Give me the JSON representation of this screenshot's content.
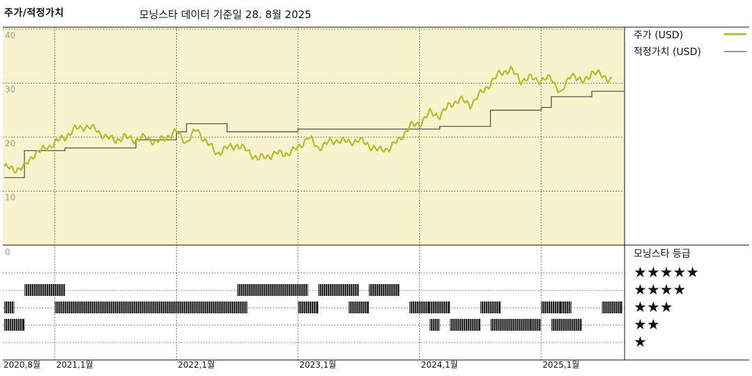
{
  "header": {
    "title": "주가/적정가치",
    "subtitle": "모닝스타 데이터 기준일 28. 8월 2025"
  },
  "legend": {
    "price_label": "주가 (USD)",
    "fair_value_label": "적정가치 (USD)",
    "rating_title": "모닝스타 등급",
    "stars": [
      "★★★★★",
      "★★★★",
      "★★★",
      "★★",
      "★"
    ]
  },
  "colors": {
    "price": "#b5bb2c",
    "fair_value": "#555555",
    "plot_bg": "#f8f3cc",
    "rating_bar": "#222222"
  },
  "chart_data": [
    {
      "type": "line",
      "title": "주가/적정가치",
      "ylim": [
        0,
        40
      ],
      "yticks": [
        "40",
        "30",
        "20",
        "10"
      ],
      "xticks": [
        "2020,8월",
        "2021,1월",
        "2022,1월",
        "2023,1월",
        "2024,1월",
        "2025,1월"
      ],
      "grid": true,
      "legend_position": "right",
      "series": [
        {
          "name": "주가 (USD)",
          "x": [
            "2020-08",
            "2020-09",
            "2020-10",
            "2020-11",
            "2020-12",
            "2021-01",
            "2021-02",
            "2021-03",
            "2021-04",
            "2021-05",
            "2021-06",
            "2021-07",
            "2021-08",
            "2021-09",
            "2021-10",
            "2021-11",
            "2021-12",
            "2022-01",
            "2022-02",
            "2022-03",
            "2022-04",
            "2022-05",
            "2022-06",
            "2022-07",
            "2022-08",
            "2022-09",
            "2022-10",
            "2022-11",
            "2022-12",
            "2023-01",
            "2023-02",
            "2023-03",
            "2023-04",
            "2023-05",
            "2023-06",
            "2023-07",
            "2023-08",
            "2023-09",
            "2023-10",
            "2023-11",
            "2023-12",
            "2024-01",
            "2024-02",
            "2024-03",
            "2024-04",
            "2024-05",
            "2024-06",
            "2024-07",
            "2024-08",
            "2024-09",
            "2024-10",
            "2024-11",
            "2024-12",
            "2025-01",
            "2025-02",
            "2025-03",
            "2025-04",
            "2025-05",
            "2025-06",
            "2025-07",
            "2025-08"
          ],
          "values": [
            14.5,
            14.0,
            14.5,
            17.0,
            17.8,
            19.0,
            20.0,
            21.5,
            22.0,
            21.5,
            20.0,
            19.5,
            20.0,
            19.5,
            20.0,
            19.0,
            20.0,
            21.0,
            19.0,
            21.5,
            19.0,
            17.0,
            18.0,
            18.5,
            17.5,
            16.0,
            16.5,
            17.0,
            17.0,
            18.0,
            20.0,
            18.0,
            19.0,
            19.5,
            19.0,
            19.5,
            18.5,
            17.5,
            18.0,
            19.5,
            22.0,
            22.5,
            24.5,
            24.0,
            26.0,
            27.0,
            26.0,
            28.0,
            30.0,
            32.0,
            32.5,
            30.5,
            31.0,
            30.5,
            31.0,
            28.0,
            32.0,
            30.0,
            32.0,
            31.5,
            30.5
          ]
        },
        {
          "name": "적정가치 (USD)",
          "x": [
            "2020-08",
            "2020-10",
            "2021-02",
            "2021-09",
            "2022-01",
            "2022-02",
            "2022-06",
            "2023-01",
            "2024-01",
            "2024-03",
            "2024-08",
            "2025-01",
            "2025-02",
            "2025-06",
            "2025-08"
          ],
          "values": [
            12.5,
            17.5,
            18.0,
            19.5,
            21.0,
            22.5,
            21.0,
            21.5,
            21.5,
            22.0,
            25.0,
            25.5,
            27.5,
            28.5,
            28.5
          ]
        }
      ]
    },
    {
      "type": "table",
      "title": "모닝스타 등급",
      "xticks": [
        "2020,8월",
        "2021,1월",
        "2022,1월",
        "2023,1월",
        "2024,1월",
        "2025,1월"
      ],
      "note": "Each segment is a period [start, end] during which the stock held the star rating.",
      "series": [
        {
          "name": "★★★★★",
          "periods": []
        },
        {
          "name": "★★★★",
          "periods": [
            [
              "2020-10",
              "2021-01"
            ],
            [
              "2022-07",
              "2023-01"
            ],
            [
              "2023-03",
              "2023-06"
            ],
            [
              "2023-08",
              "2023-10"
            ]
          ]
        },
        {
          "name": "★★★",
          "periods": [
            [
              "2020-08",
              "2020-08"
            ],
            [
              "2021-01",
              "2022-07"
            ],
            [
              "2023-01",
              "2023-02"
            ],
            [
              "2023-06",
              "2023-07"
            ],
            [
              "2023-12",
              "2024-01"
            ],
            [
              "2024-02",
              "2024-03"
            ],
            [
              "2024-07",
              "2024-08"
            ],
            [
              "2025-01",
              "2025-02"
            ],
            [
              "2025-03",
              "2025-03"
            ],
            [
              "2025-07",
              "2025-08"
            ]
          ]
        },
        {
          "name": "★★",
          "periods": [
            [
              "2020-08",
              "2020-09"
            ],
            [
              "2024-02",
              "2024-02"
            ],
            [
              "2024-04",
              "2024-06"
            ],
            [
              "2024-08",
              "2024-11"
            ],
            [
              "2024-12",
              "2024-12"
            ],
            [
              "2025-02",
              "2025-04"
            ]
          ]
        },
        {
          "name": "★",
          "periods": []
        }
      ]
    }
  ]
}
